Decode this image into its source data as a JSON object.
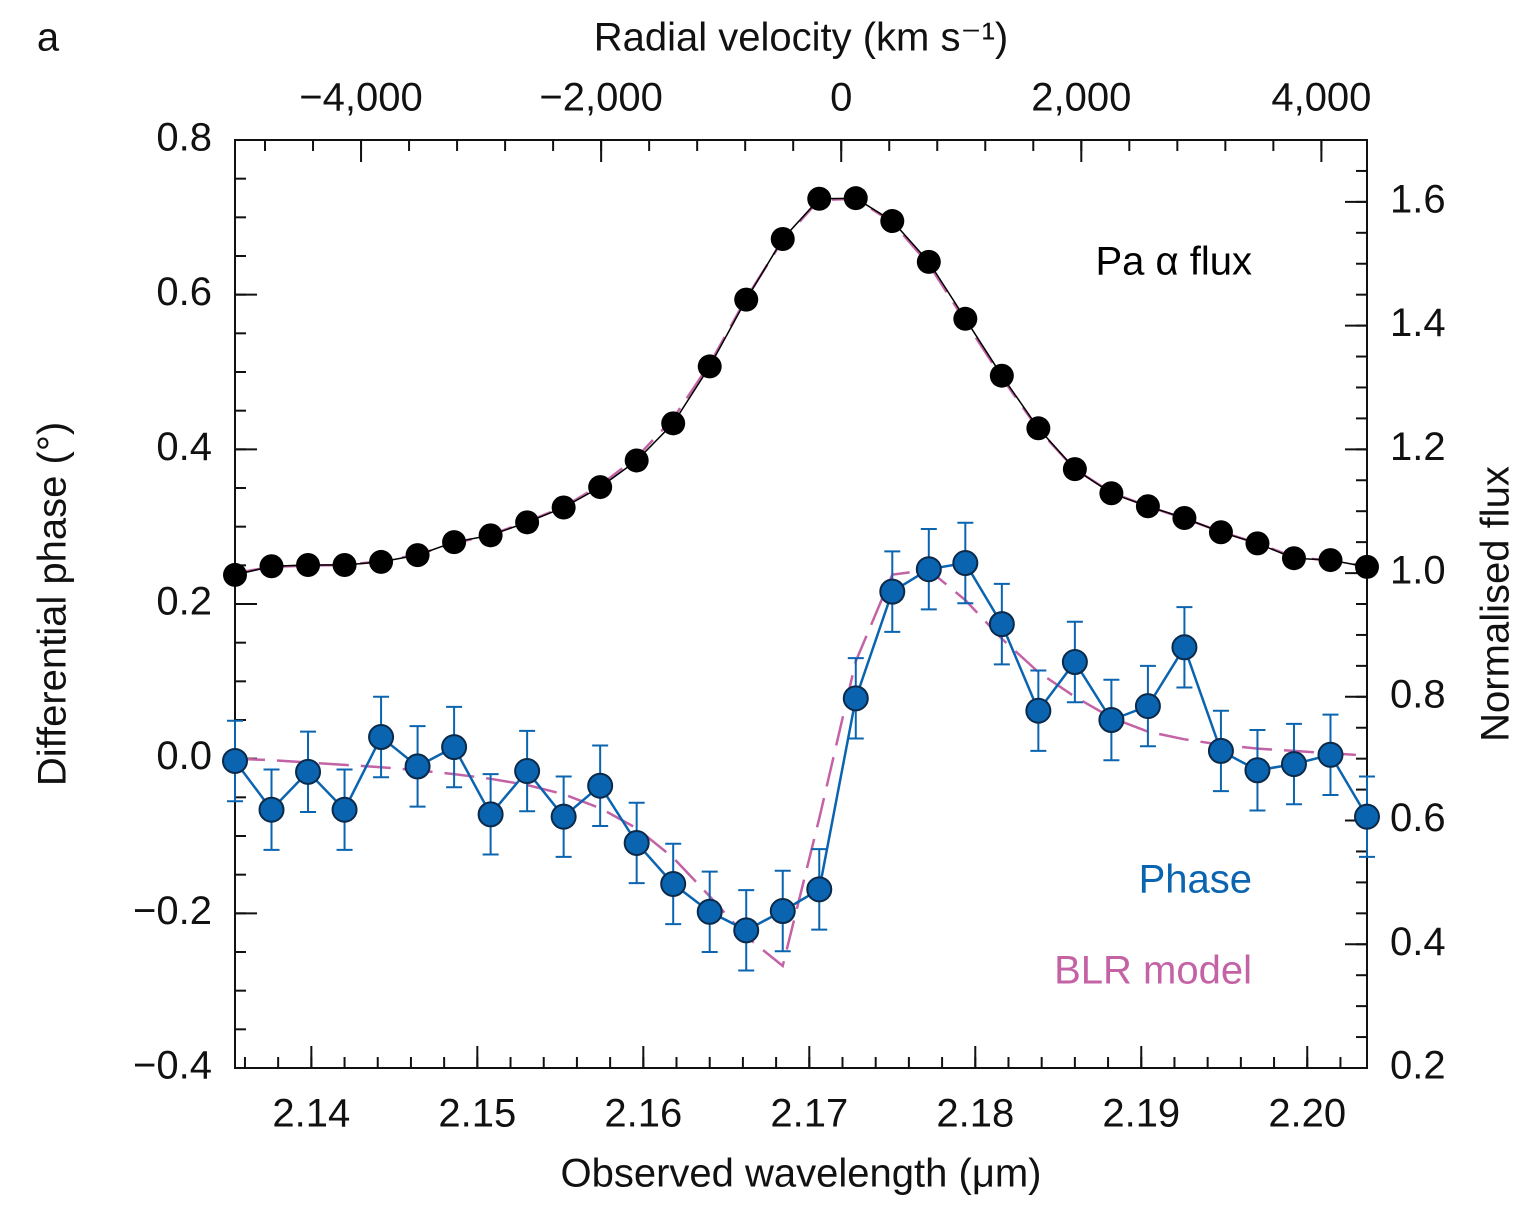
{
  "chart_data": {
    "type": "line",
    "panel_label": "a",
    "x_label": "Observed wavelength (μm)",
    "x2_label": "Radial velocity (km s⁻¹)",
    "y_label": "Differential phase (°)",
    "y2_label": "Normalised flux",
    "x": [
      2.1354,
      2.1376,
      2.1398,
      2.142,
      2.1442,
      2.1464,
      2.1486,
      2.1508,
      2.153,
      2.1552,
      2.1574,
      2.1596,
      2.1618,
      2.164,
      2.1662,
      2.1684,
      2.1706,
      2.1728,
      2.175,
      2.1772,
      2.1794,
      2.1816,
      2.1838,
      2.186,
      2.1882,
      2.1904,
      2.1926,
      2.1948,
      2.197,
      2.1992,
      2.2014,
      2.2036
    ],
    "xlim": [
      2.1354,
      2.2036
    ],
    "xticks": [
      2.14,
      2.15,
      2.16,
      2.17,
      2.18,
      2.19,
      {
        "value": 2.2,
        "label": "2.20"
      }
    ],
    "x_minor_step": 0.002,
    "x2lim": [
      -5050,
      4380
    ],
    "x2ticks": [
      {
        "value": -4000,
        "label": "−4,000"
      },
      {
        "value": -2000,
        "label": "−2,000"
      },
      0,
      {
        "value": 2000,
        "label": "2,000"
      },
      {
        "value": 4000,
        "label": "4,000"
      }
    ],
    "x2_minor_step": 400,
    "ylim": [
      -0.4,
      0.8
    ],
    "yticks": [
      {
        "value": -0.4,
        "label": "−0.4"
      },
      {
        "value": -0.2,
        "label": "−0.2"
      },
      {
        "value": 0,
        "label": "0.0"
      },
      0.2,
      0.4,
      0.6,
      0.8
    ],
    "y_minor_step": 0.05,
    "y2lim": [
      0.2,
      1.7
    ],
    "y2ticks": [
      0.2,
      0.4,
      0.6,
      0.8,
      {
        "value": 1,
        "label": "1.0"
      },
      1.2,
      1.4,
      1.6
    ],
    "y2_minor_step": 0.05,
    "series": [
      {
        "name": "Pa α flux",
        "color": "#000000",
        "axis": "y2",
        "values": [
          0.997,
          1.011,
          1.013,
          1.013,
          1.018,
          1.029,
          1.05,
          1.061,
          1.082,
          1.106,
          1.139,
          1.182,
          1.242,
          1.334,
          1.442,
          1.54,
          1.605,
          1.606,
          1.569,
          1.503,
          1.411,
          1.319,
          1.234,
          1.168,
          1.129,
          1.108,
          1.089,
          1.066,
          1.048,
          1.024,
          1.021,
          1.01
        ]
      },
      {
        "name": "Phase",
        "color": "#0a64b0",
        "axis": "y",
        "values": [
          -0.003,
          -0.066,
          -0.017,
          -0.066,
          0.028,
          -0.01,
          0.015,
          -0.072,
          -0.016,
          -0.075,
          -0.035,
          -0.109,
          -0.162,
          -0.198,
          -0.222,
          -0.197,
          -0.169,
          0.078,
          0.216,
          0.245,
          0.253,
          0.174,
          0.062,
          0.125,
          0.05,
          0.068,
          0.144,
          0.01,
          -0.015,
          -0.007,
          0.005,
          -0.075
        ],
        "errors": [
          0.052,
          0.052,
          0.052,
          0.052,
          0.052,
          0.052,
          0.052,
          0.052,
          0.052,
          0.052,
          0.052,
          0.052,
          0.052,
          0.052,
          0.052,
          0.052,
          0.052,
          0.052,
          0.052,
          0.052,
          0.052,
          0.052,
          0.052,
          0.052,
          0.052,
          0.052,
          0.052,
          0.052,
          0.052,
          0.052,
          0.052,
          0.052
        ]
      },
      {
        "name": "BLR model",
        "color": "#c462a6",
        "axis": "y",
        "dashed": true,
        "values": [
          0.0,
          -0.002,
          -0.005,
          -0.008,
          -0.011,
          -0.015,
          -0.02,
          -0.026,
          -0.034,
          -0.046,
          -0.064,
          -0.09,
          -0.128,
          -0.178,
          -0.23,
          -0.268,
          -0.077,
          0.126,
          0.238,
          0.244,
          0.205,
          0.155,
          0.112,
          0.08,
          0.053,
          0.035,
          0.025,
          0.018,
          0.013,
          0.01,
          0.007,
          0.004
        ]
      },
      {
        "color": "#c462a6",
        "axis": "y2",
        "dashed": true,
        "values": [
          1.0,
          1.01,
          1.012,
          1.013,
          1.019,
          1.03,
          1.048,
          1.062,
          1.083,
          1.107,
          1.142,
          1.187,
          1.25,
          1.338,
          1.444,
          1.538,
          1.603,
          1.605,
          1.567,
          1.499,
          1.407,
          1.316,
          1.232,
          1.168,
          1.13,
          1.108,
          1.088,
          1.067,
          1.048,
          1.026,
          1.02,
          1.011
        ]
      }
    ]
  }
}
